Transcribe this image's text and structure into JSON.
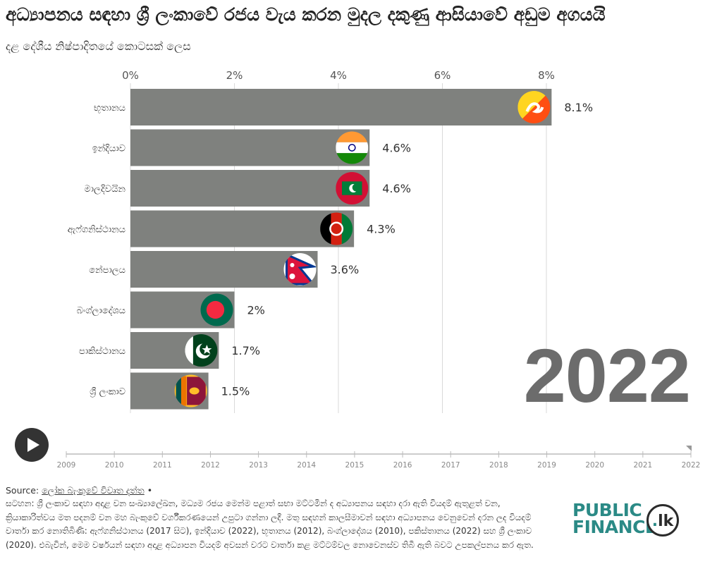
{
  "title": "අධ්‍යාපනය සඳහා ශ්‍රී ලංකාවේ රජය වැය කරන මුදල දකුණු ආසියාවේ අඩුම අගයයි",
  "subtitle": "දළ දේශීය නිෂ්පාදිතයේ කොටසක් ලෙස",
  "current_year": "2022",
  "colors": {
    "bar": "#7f817e",
    "grid": "#d9d9d9",
    "axis_text": "#555555",
    "year_text": "#6c6c6c"
  },
  "chart_data": {
    "type": "bar",
    "orientation": "horizontal",
    "title": "අධ්‍යාපනය සඳහා ශ්‍රී ලංකාවේ රජය වැය කරන මුදල දකුණු ආසියාවේ අඩුම අගයයි",
    "subtitle": "දළ දේශීය නිෂ්පාදිතයේ කොටසක් ලෙස",
    "categories": [
      "භූතානය",
      "ඉන්දියාව",
      "මාලදිවයින",
      "ඇෆ්ගනිස්ථානය",
      "නේපාලය",
      "බංග්ලාදේශය",
      "පාකිස්ථානය",
      "ශ්‍රී ලංකාව"
    ],
    "values": [
      8.1,
      4.6,
      4.6,
      4.3,
      3.6,
      2,
      1.7,
      1.5
    ],
    "value_labels": [
      "8.1%",
      "4.6%",
      "4.6%",
      "4.3%",
      "3.6%",
      "2%",
      "1.7%",
      "1.5%"
    ],
    "flags": [
      "bhutan-flag-icon",
      "india-flag-icon",
      "maldives-flag-icon",
      "afghanistan-flag-icon",
      "nepal-flag-icon",
      "bangladesh-flag-icon",
      "pakistan-flag-icon",
      "sri-lanka-flag-icon"
    ],
    "x_ticks": [
      0,
      2,
      4,
      6,
      8
    ],
    "x_tick_labels": [
      "0%",
      "2%",
      "4%",
      "6%",
      "8%"
    ],
    "xlim": [
      0,
      8.6
    ],
    "grid": true
  },
  "timeline": {
    "years": [
      "2009",
      "2010",
      "2011",
      "2012",
      "2013",
      "2014",
      "2015",
      "2016",
      "2017",
      "2018",
      "2019",
      "2020",
      "2021",
      "2022"
    ],
    "selected": "2022"
  },
  "footer": {
    "source_label": "Source:",
    "source_link": "ලෝක බැංකුවේ විවෘත දත්ත",
    "source_bullet": "•",
    "note": "සටහන: ශ්‍රී ලංකාව සඳහා අදාළ වන සංඛ්‍යාලේඛන, මධ්‍යම රජය මෙන්ම පළාත් සභා මට්ටමින් ද අධ්‍යාපනය සඳහා දරා ඇති වියදම් ඇතුළත් වන, ක්‍රියාකාරිත්වය මත පදනම් වන මහ බැංකුවේ වර්ගීකරණයෙන් උපුටා ගන්නා ලදී. මතු සඳහන් කාලසීමාවන් සඳහා අධ්‍යාපනය වෙනුවෙන් දරන ලද වියදම් වාර්තා කර නොතිබිණි: ඇෆ්ගනිස්ථානය (2017 සිට), ඉන්දියාව (2022), භූතානය (2012), බංග්ලාදේශය (2010), පකිස්තානය (2022) සහ ශ්‍රී ලංකාව (2020). එබැවින්, මෙම වර්ෂයන් සඳහා අදාළ අධ්‍යාපන වියදම් අවසන් වරට වාර්තා කළ මට්ටම්වල නොවෙනස්ව තිබී ඇති බවට උපකල්පනය කර ඇත."
  },
  "logo": {
    "line1": "PUBLIC",
    "line2": "FINANCE",
    "badge_dot": ".",
    "badge_text": "lk"
  },
  "play_button_label": "play"
}
